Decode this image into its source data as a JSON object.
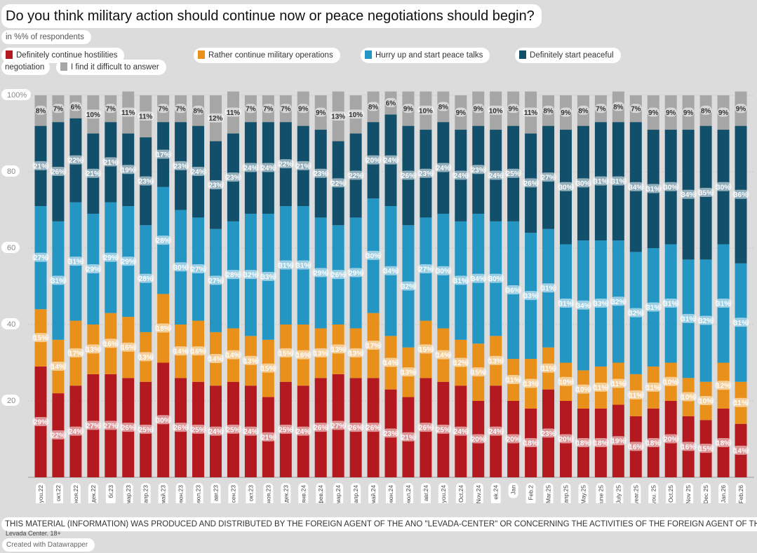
{
  "chart_data": {
    "type": "bar",
    "stacked": true,
    "title": "Do you think military action should continue now or peace negotiations should begin?",
    "subtitle": "in %% of respondents",
    "ylim": [
      0,
      100
    ],
    "y_ticks": [
      "20",
      "40",
      "60",
      "80",
      "100%"
    ],
    "categories": [
      "you.22",
      "окт.22",
      "ноя.22",
      "дек.22",
      "бг.23",
      "мар.23",
      "апр.23",
      "май.23",
      "июн.23",
      "июл.23",
      "авг.23",
      "сен.23",
      "окт.23",
      "ноя.23",
      "дек.23",
      "янв.24",
      "фев.24",
      "мар.24",
      "апр.24",
      "май.24",
      "июн.24",
      "июл.24",
      "авг.24",
      "you.24",
      "Oct.24",
      "Nov.24",
      "ek.24",
      "Jan",
      "Feb.2",
      "Mar.25",
      "апр.25",
      "May.25",
      "June 25",
      "July 25",
      "year.25",
      "you. 25",
      "Oct.25",
      "Nov 25",
      "Dec 25",
      "Jan.26",
      "Feb.26"
    ],
    "series": [
      {
        "name": "Definitely continue hostilities",
        "color": "#b3191e",
        "values": [
          29,
          22,
          24,
          27,
          27,
          26,
          25,
          30,
          26,
          25,
          24,
          25,
          24,
          21,
          25,
          24,
          26,
          27,
          26,
          26,
          23,
          21,
          26,
          25,
          24,
          20,
          24,
          20,
          18,
          23,
          20,
          18,
          18,
          19,
          16,
          18,
          20,
          16,
          15,
          18,
          14
        ]
      },
      {
        "name": "Rather continue military operations",
        "color": "#e8901a",
        "values": [
          15,
          14,
          17,
          13,
          16,
          16,
          13,
          18,
          14,
          16,
          14,
          14,
          13,
          15,
          15,
          16,
          13,
          13,
          13,
          17,
          14,
          13,
          15,
          14,
          12,
          15,
          13,
          11,
          13,
          11,
          10,
          10,
          11,
          11,
          11,
          11,
          10,
          10,
          10,
          12,
          11
        ]
      },
      {
        "name": "Hurry up and start peace talks",
        "color": "#2496c4",
        "values": [
          27,
          31,
          31,
          29,
          29,
          29,
          28,
          28,
          30,
          27,
          27,
          28,
          32,
          33,
          31,
          31,
          29,
          26,
          29,
          30,
          34,
          32,
          27,
          30,
          31,
          34,
          30,
          36,
          33,
          31,
          31,
          34,
          33,
          32,
          32,
          31,
          31,
          31,
          32,
          31,
          31
        ]
      },
      {
        "name": "Definitely start peaceful negotiation",
        "color": "#124f6a",
        "values": [
          21,
          26,
          22,
          21,
          21,
          19,
          23,
          17,
          23,
          24,
          23,
          23,
          24,
          24,
          22,
          21,
          23,
          22,
          22,
          20,
          24,
          26,
          23,
          24,
          24,
          23,
          24,
          25,
          26,
          27,
          30,
          30,
          31,
          31,
          34,
          31,
          30,
          34,
          35,
          30,
          36
        ]
      },
      {
        "name": "I find it difficult to answer",
        "color": "#a6a6a6",
        "values": [
          8,
          7,
          6,
          10,
          7,
          11,
          11,
          7,
          7,
          8,
          12,
          11,
          7,
          7,
          7,
          9,
          9,
          13,
          10,
          8,
          6,
          9,
          10,
          8,
          9,
          9,
          10,
          9,
          11,
          8,
          9,
          8,
          7,
          8,
          7,
          9,
          9,
          9,
          8,
          9,
          9
        ]
      }
    ]
  },
  "legend": {
    "s1": "Definitely continue hostilities",
    "s2": "Rather continue military operations",
    "s3": "Hurry up and start peace talks",
    "s4_line1": "Definitely start peaceful",
    "s4_line2": "negotiation",
    "s5": "I find it difficult to answer"
  },
  "footer": "THIS MATERIAL (INFORMATION) WAS PRODUCED AND DISTRIBUTED BY THE FOREIGN AGENT OF THE ANO \"LEVADA-CENTER\" OR CONCERNING THE ACTIVITIES OF THE FOREIGN AGENT OF THE ANO",
  "source": "Levada Center. 18+",
  "credit": "Created with Datawrapper"
}
